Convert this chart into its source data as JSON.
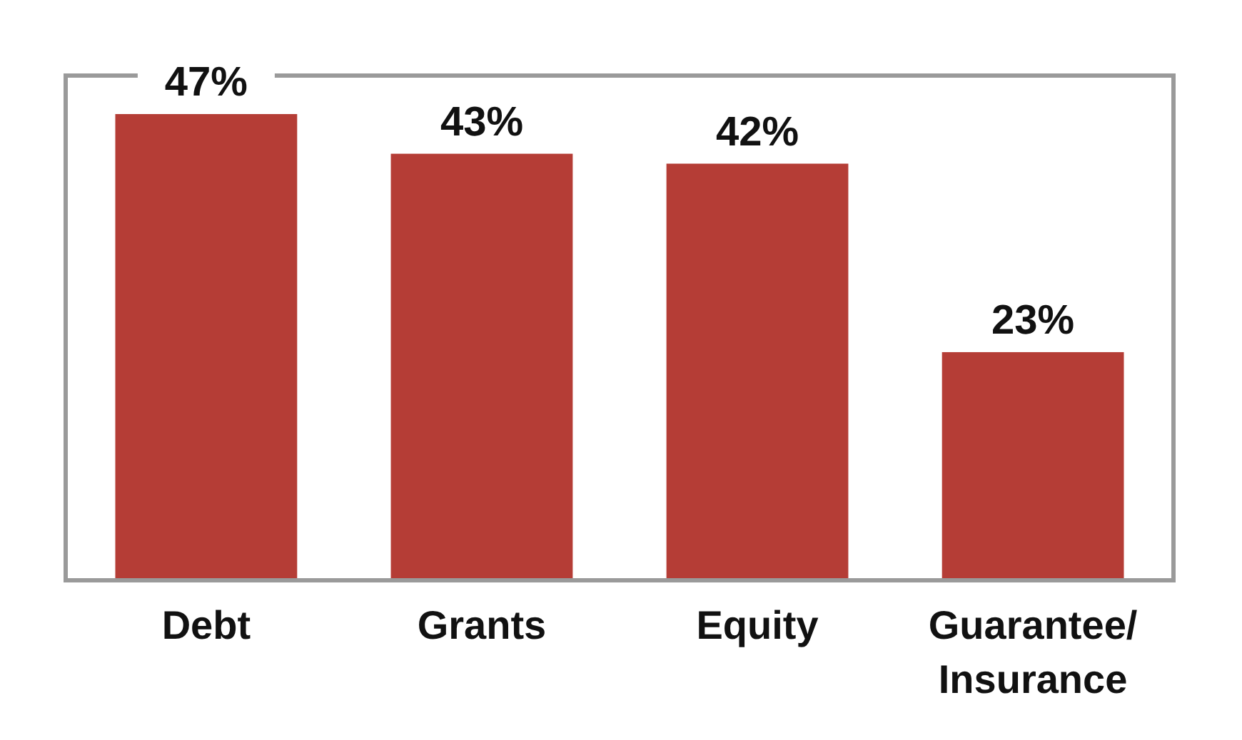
{
  "chart_data": {
    "type": "bar",
    "categories": [
      "Debt",
      "Grants",
      "Equity",
      "Guarantee/ Insurance"
    ],
    "values": [
      47,
      43,
      42,
      23
    ],
    "value_labels": [
      "47%",
      "43%",
      "42%",
      "23%"
    ],
    "color": "#b53d36",
    "grid": false
  }
}
